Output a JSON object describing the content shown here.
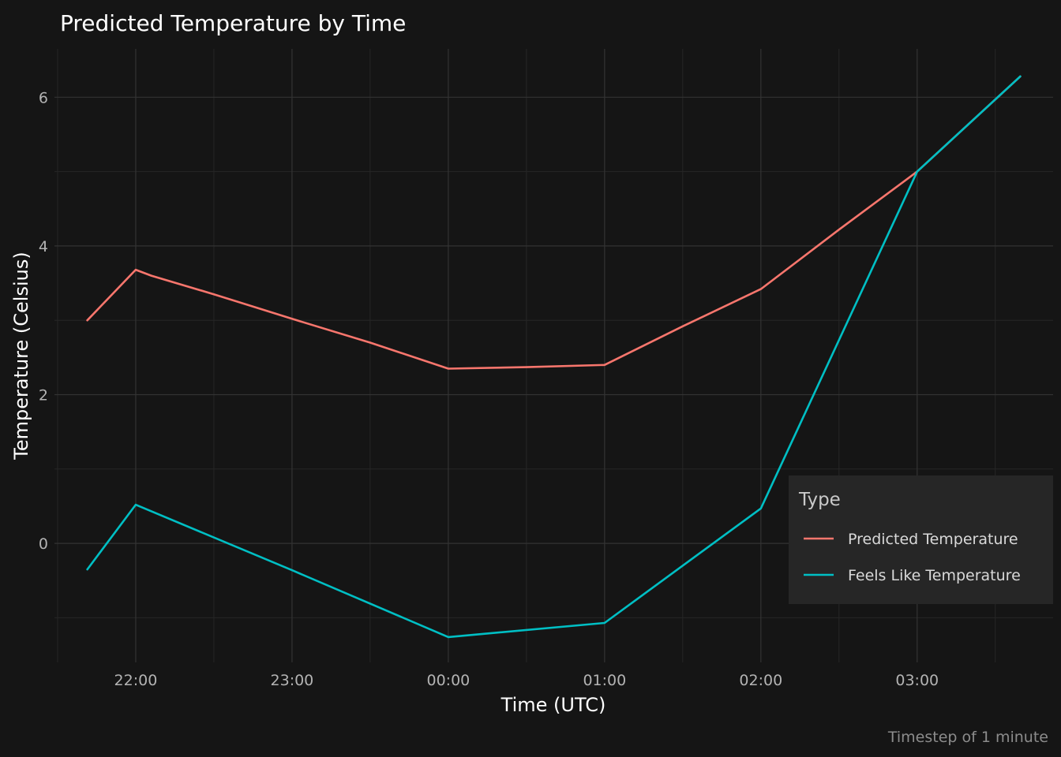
{
  "chart_data": {
    "type": "line",
    "title": "Predicted Temperature by Time",
    "xlabel": "Time (UTC)",
    "ylabel": "Temperature (Celsius)",
    "caption": "Timestep of 1 minute",
    "x_ticks": [
      "22:00",
      "23:00",
      "00:00",
      "01:00",
      "02:00",
      "03:00"
    ],
    "x_tick_values": [
      22,
      23,
      24,
      25,
      26,
      27
    ],
    "y_ticks": [
      "0",
      "2",
      "4",
      "6"
    ],
    "y_tick_values": [
      0,
      2,
      4,
      6
    ],
    "xlim": [
      21.48,
      27.87
    ],
    "ylim": [
      -1.6,
      6.65
    ],
    "grid": true,
    "legend": {
      "title": "Type",
      "position": "right-bottom, inside"
    },
    "series": [
      {
        "name": "Predicted Temperature",
        "color": "#F8766D",
        "x": [
          21.69,
          22.0,
          22.1,
          22.5,
          23.0,
          23.5,
          24.0,
          24.5,
          25.0,
          25.5,
          26.0,
          26.5,
          27.0,
          27.66
        ],
        "y": [
          3.0,
          3.68,
          3.6,
          3.35,
          3.02,
          2.7,
          2.35,
          2.37,
          2.4,
          2.92,
          3.42,
          4.22,
          5.0,
          6.28
        ]
      },
      {
        "name": "Feels Like Temperature",
        "color": "#00BFC4",
        "x": [
          21.69,
          22.0,
          23.0,
          24.0,
          25.0,
          26.0,
          27.0,
          27.66
        ],
        "y": [
          -0.35,
          0.52,
          -0.36,
          -1.26,
          -1.07,
          0.47,
          5.0,
          6.28
        ]
      }
    ]
  }
}
